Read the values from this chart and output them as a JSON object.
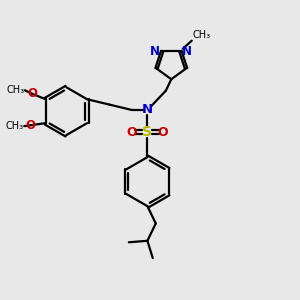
{
  "bg_color": "#e8e8e8",
  "bond_color": "#000000",
  "N_color": "#0000cc",
  "O_color": "#cc0000",
  "S_color": "#bbbb00",
  "line_width": 1.6,
  "figsize": [
    3.0,
    3.0
  ],
  "dpi": 100,
  "xlim": [
    0,
    10
  ],
  "ylim": [
    0,
    10
  ]
}
